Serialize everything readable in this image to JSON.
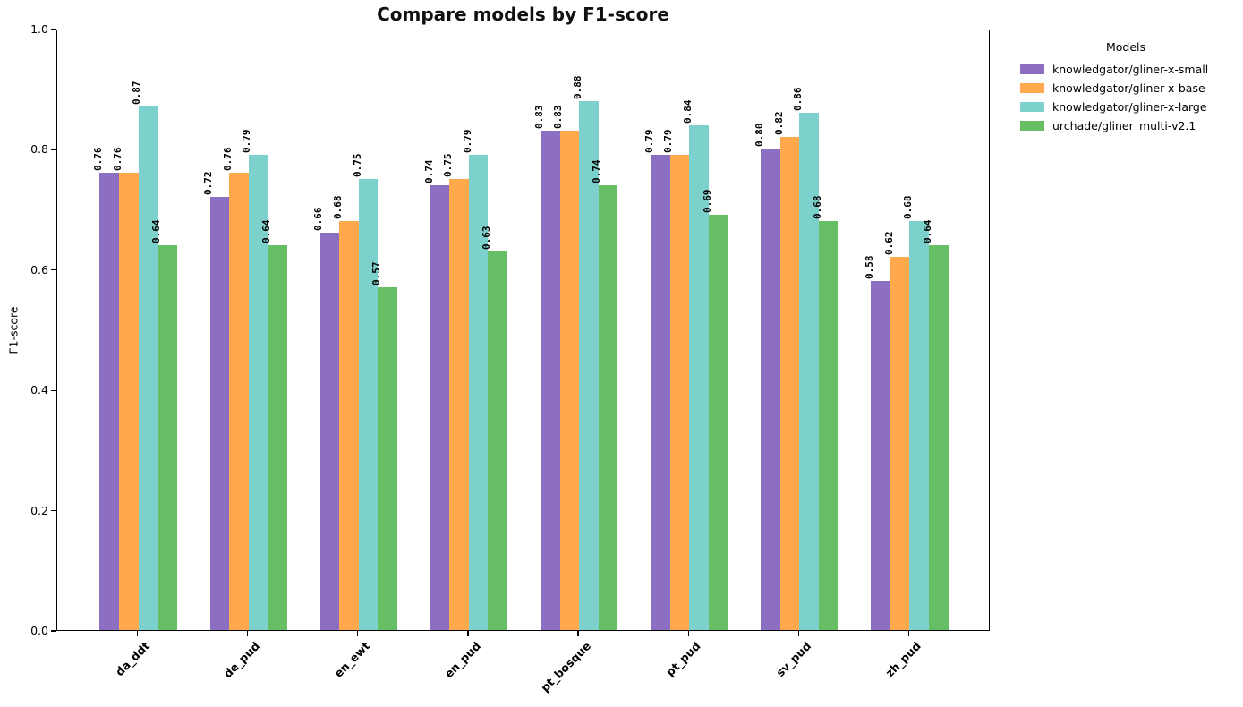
{
  "chart_data": {
    "type": "bar",
    "title": "Compare models by F1-score",
    "xlabel": "",
    "ylabel": "F1-score",
    "legend_title": "Models",
    "legend_position": "outside upper right",
    "grid": false,
    "ylim": [
      0.0,
      1.0
    ],
    "yticks": [
      0.0,
      0.2,
      0.4,
      0.6,
      0.8,
      1.0
    ],
    "bar_labels": true,
    "categories": [
      "da_ddt",
      "de_pud",
      "en_ewt",
      "en_pud",
      "pt_bosque",
      "pt_pud",
      "sv_pud",
      "zh_pud"
    ],
    "series": [
      {
        "name": "knowledgator/gliner-x-small",
        "color": "#8c6ec3",
        "values": [
          0.76,
          0.72,
          0.66,
          0.74,
          0.83,
          0.79,
          0.8,
          0.58
        ]
      },
      {
        "name": "knowledgator/gliner-x-base",
        "color": "#ffa84c",
        "values": [
          0.76,
          0.76,
          0.68,
          0.75,
          0.83,
          0.79,
          0.82,
          0.62
        ]
      },
      {
        "name": "knowledgator/gliner-x-large",
        "color": "#7dd1cc",
        "values": [
          0.87,
          0.79,
          0.75,
          0.79,
          0.88,
          0.84,
          0.86,
          0.68
        ]
      },
      {
        "name": "urchade/gliner_multi-v2.1",
        "color": "#66bf64",
        "values": [
          0.64,
          0.64,
          0.57,
          0.63,
          0.74,
          0.69,
          0.68,
          0.64
        ]
      }
    ]
  }
}
